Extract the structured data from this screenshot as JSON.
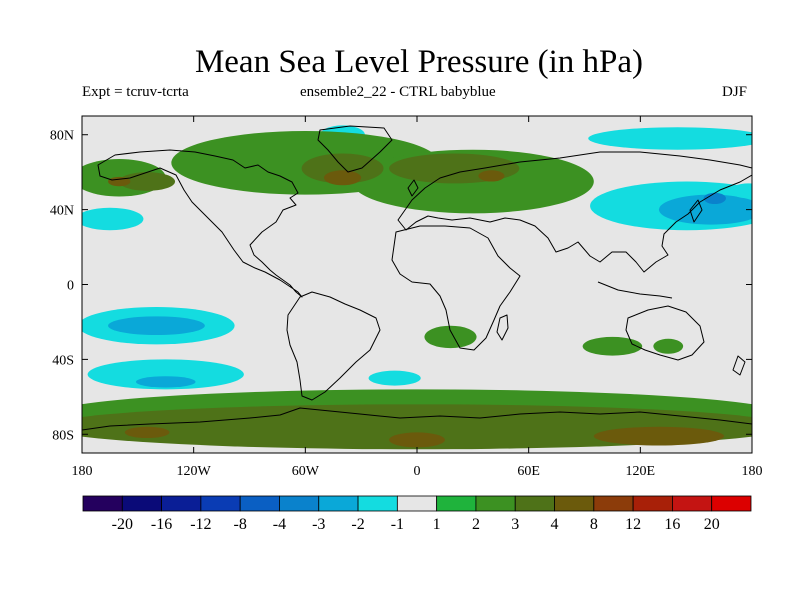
{
  "header": {
    "title": "Mean Sea Level Pressure (in hPa)",
    "left": "Expt = tcruv-tcrta",
    "center": "ensemble2_22 - CTRL babyblue",
    "right": "DJF"
  },
  "map": {
    "projection": "cylindrical equidistant",
    "lon_range": [
      -180,
      180
    ],
    "lat_range": [
      -90,
      90
    ],
    "lat_ticks": [
      {
        "lat": 80,
        "label": "80N"
      },
      {
        "lat": 40,
        "label": "40N"
      },
      {
        "lat": 0,
        "label": "0"
      },
      {
        "lat": -40,
        "label": "40S"
      },
      {
        "lat": -80,
        "label": "80S"
      }
    ],
    "lon_ticks": [
      {
        "lon": -180,
        "label": "180"
      },
      {
        "lon": -120,
        "label": "120W"
      },
      {
        "lon": -60,
        "label": "60W"
      },
      {
        "lon": 0,
        "label": "0"
      },
      {
        "lon": 60,
        "label": "60E"
      },
      {
        "lon": 120,
        "label": "120E"
      },
      {
        "lon": 180,
        "label": "180"
      }
    ],
    "background_color": "#e6e6e6",
    "fields": [
      {
        "lon": 145,
        "lat": 42,
        "rx": 52,
        "ry": 13,
        "level": -2
      },
      {
        "lon": 158,
        "lat": 40,
        "rx": 28,
        "ry": 8,
        "level": -3
      },
      {
        "lon": 160,
        "lat": 46,
        "rx": 6,
        "ry": 3,
        "level": -4
      },
      {
        "lon": 178,
        "lat": 50,
        "rx": 10,
        "ry": 4,
        "level": -2
      },
      {
        "lon": 140,
        "lat": 78,
        "rx": 48,
        "ry": 6,
        "level": -2
      },
      {
        "lon": -40,
        "lat": 80,
        "rx": 12,
        "ry": 5,
        "level": -2
      },
      {
        "lon": -165,
        "lat": 35,
        "rx": 18,
        "ry": 6,
        "level": -2
      },
      {
        "lon": -140,
        "lat": -22,
        "rx": 42,
        "ry": 10,
        "level": -2
      },
      {
        "lon": -140,
        "lat": -22,
        "rx": 26,
        "ry": 5,
        "level": -3
      },
      {
        "lon": -135,
        "lat": -48,
        "rx": 42,
        "ry": 8,
        "level": -2
      },
      {
        "lon": -135,
        "lat": -52,
        "rx": 16,
        "ry": 3,
        "level": -3
      },
      {
        "lon": -12,
        "lat": -50,
        "rx": 14,
        "ry": 4,
        "level": -2
      },
      {
        "lon": -60,
        "lat": 65,
        "rx": 72,
        "ry": 17,
        "level": 2
      },
      {
        "lon": 30,
        "lat": 55,
        "rx": 65,
        "ry": 17,
        "level": 2
      },
      {
        "lon": -160,
        "lat": 57,
        "rx": 25,
        "ry": 10,
        "level": 2
      },
      {
        "lon": 18,
        "lat": -28,
        "rx": 14,
        "ry": 6,
        "level": 2
      },
      {
        "lon": 105,
        "lat": -33,
        "rx": 16,
        "ry": 5,
        "level": 2
      },
      {
        "lon": 135,
        "lat": -33,
        "rx": 8,
        "ry": 4,
        "level": 2
      },
      {
        "lon": -40,
        "lat": 62,
        "rx": 22,
        "ry": 8,
        "level": 3
      },
      {
        "lon": 20,
        "lat": 62,
        "rx": 35,
        "ry": 8,
        "level": 3
      },
      {
        "lon": -145,
        "lat": 55,
        "rx": 15,
        "ry": 5,
        "level": 3
      },
      {
        "lon": -40,
        "lat": 57,
        "rx": 10,
        "ry": 4,
        "level": 4
      },
      {
        "lon": -160,
        "lat": 55,
        "rx": 6,
        "ry": 2.5,
        "level": 4
      },
      {
        "lon": 40,
        "lat": 58,
        "rx": 7,
        "ry": 3,
        "level": 4
      },
      {
        "lon": 0,
        "lat": -70,
        "rx": 200,
        "ry": 14,
        "level": 2
      },
      {
        "lon": 0,
        "lat": -76,
        "rx": 200,
        "ry": 12,
        "level": 3
      },
      {
        "lon": 130,
        "lat": -81,
        "rx": 35,
        "ry": 5,
        "level": 4
      },
      {
        "lon": 0,
        "lat": -83,
        "rx": 15,
        "ry": 4,
        "level": 4
      },
      {
        "lon": -145,
        "lat": -79,
        "rx": 12,
        "ry": 3,
        "level": 4
      }
    ]
  },
  "colorbar": {
    "labels": [
      "-20",
      "-16",
      "-12",
      "-8",
      "-4",
      "-3",
      "-2",
      "-1",
      "1",
      "2",
      "3",
      "4",
      "8",
      "12",
      "16",
      "20"
    ],
    "colors": [
      "#24005e",
      "#0a0a78",
      "#0a1e96",
      "#0a3cb4",
      "#0a5fc3",
      "#0a82cc",
      "#0aa8d8",
      "#14dce0",
      "#e6e6e6",
      "#1fb33c",
      "#3c9122",
      "#4e7218",
      "#6b5a0c",
      "#8c3c0a",
      "#a82008",
      "#c41412",
      "#dc0000"
    ]
  }
}
